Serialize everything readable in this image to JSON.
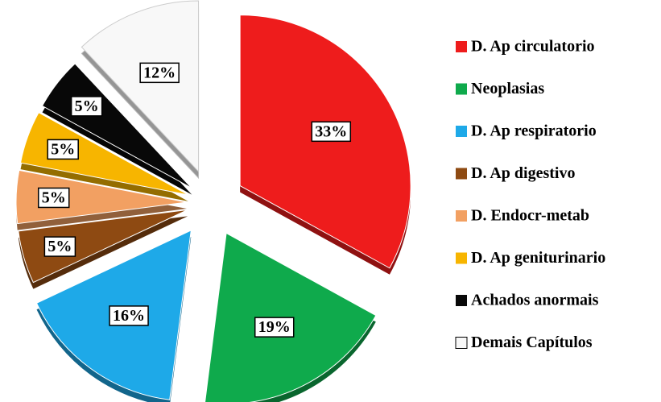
{
  "chart_data": {
    "type": "pie",
    "categories": [
      "D. Ap circulatorio",
      "Neoplasias",
      "D. Ap respiratorio",
      "D. Ap digestivo",
      "D. Endocr-metab",
      "D. Ap geniturinario",
      "Achados anormais",
      "Demais Capítulos"
    ],
    "values": [
      33,
      19,
      16,
      5,
      5,
      5,
      5,
      12
    ],
    "value_labels": [
      "33%",
      "19%",
      "16%",
      "5%",
      "5%",
      "5%",
      "5%",
      "12%"
    ],
    "colors": [
      "#ee1c1c",
      "#0faa4c",
      "#1ea9e8",
      "#8e4a12",
      "#f2a062",
      "#f7b500",
      "#080808",
      "#f8f8f8"
    ],
    "legend": "right"
  }
}
